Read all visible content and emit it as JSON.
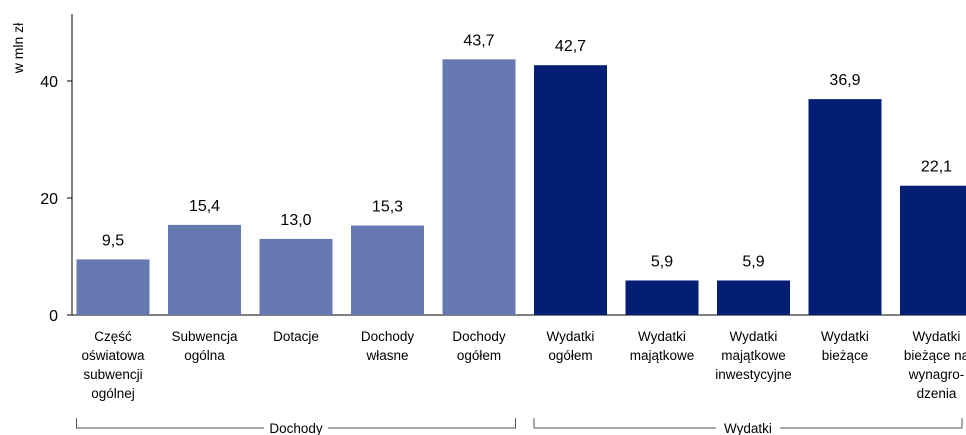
{
  "chart_data": {
    "type": "bar",
    "ylabel": "w mln zł",
    "ylim": [
      0,
      47
    ],
    "yticks": [
      0,
      20,
      40
    ],
    "grid": false,
    "categories": [
      [
        "Część",
        "oświatowa",
        "subwencji",
        "ogólnej"
      ],
      [
        "Subwencja",
        "ogólna"
      ],
      [
        "Dotacje"
      ],
      [
        "Dochody",
        "własne"
      ],
      [
        "Dochody",
        "ogółem"
      ],
      [
        "Wydatki",
        "ogółem"
      ],
      [
        "Wydatki",
        "majątkowe"
      ],
      [
        "Wydatki",
        "majątkowe",
        "inwestycyjne"
      ],
      [
        "Wydatki",
        "bieżące"
      ],
      [
        "Wydatki",
        "bieżące na",
        "wynagro-",
        "dzenia"
      ]
    ],
    "values": [
      9.5,
      15.4,
      13.0,
      15.3,
      43.7,
      42.7,
      5.9,
      5.9,
      36.9,
      22.1
    ],
    "value_labels": [
      "9,5",
      "15,4",
      "13,0",
      "15,3",
      "43,7",
      "42,7",
      "5,9",
      "5,9",
      "36,9",
      "22,1"
    ],
    "groups": [
      {
        "label": "Dochody",
        "start": 0,
        "end": 4,
        "color": "#6678b0"
      },
      {
        "label": "Wydatki",
        "start": 5,
        "end": 9,
        "color": "#031e72"
      }
    ]
  }
}
